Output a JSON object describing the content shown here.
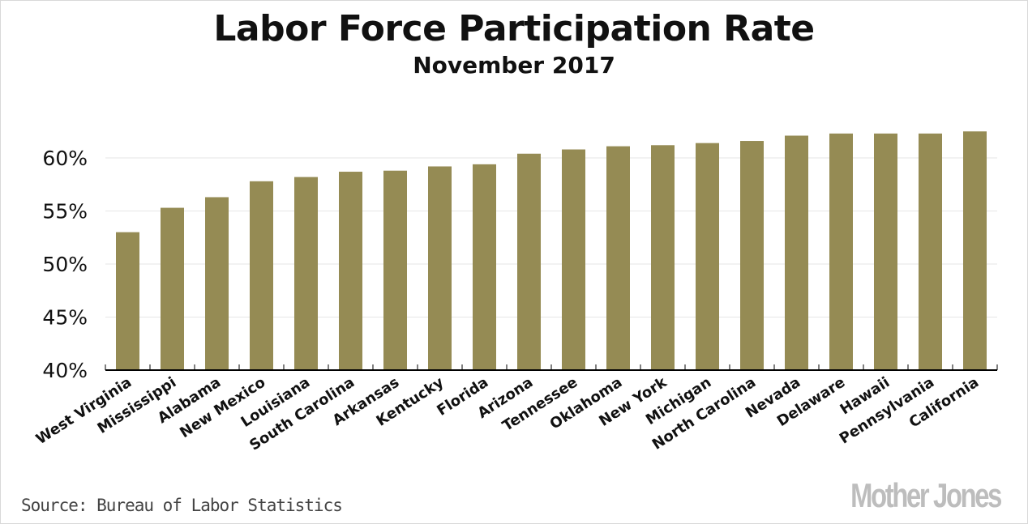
{
  "chart_data": {
    "type": "bar",
    "title": "Labor Force Participation Rate",
    "subtitle": "November 2017",
    "xlabel": "",
    "ylabel": "",
    "categories": [
      "West Virginia",
      "Mississippi",
      "Alabama",
      "New Mexico",
      "Louisiana",
      "South Carolina",
      "Arkansas",
      "Kentucky",
      "Florida",
      "Arizona",
      "Tennessee",
      "Oklahoma",
      "New York",
      "Michigan",
      "North Carolina",
      "Nevada",
      "Delaware",
      "Hawaii",
      "Pennsylvania",
      "California"
    ],
    "values": [
      53.0,
      55.3,
      56.3,
      57.8,
      58.2,
      58.7,
      58.8,
      59.2,
      59.4,
      60.4,
      60.8,
      61.1,
      61.2,
      61.4,
      61.6,
      62.1,
      62.3,
      62.3,
      62.3,
      62.5
    ],
    "ylim": [
      40,
      63.5
    ],
    "yticks": [
      40,
      45,
      50,
      55,
      60
    ],
    "ytick_labels": [
      "40%",
      "45%",
      "50%",
      "55%",
      "60%"
    ],
    "grid": "horizontal",
    "bar_color": "#958b54",
    "source": "Source: Bureau of Labor Statistics",
    "logo": "Mother Jones"
  }
}
